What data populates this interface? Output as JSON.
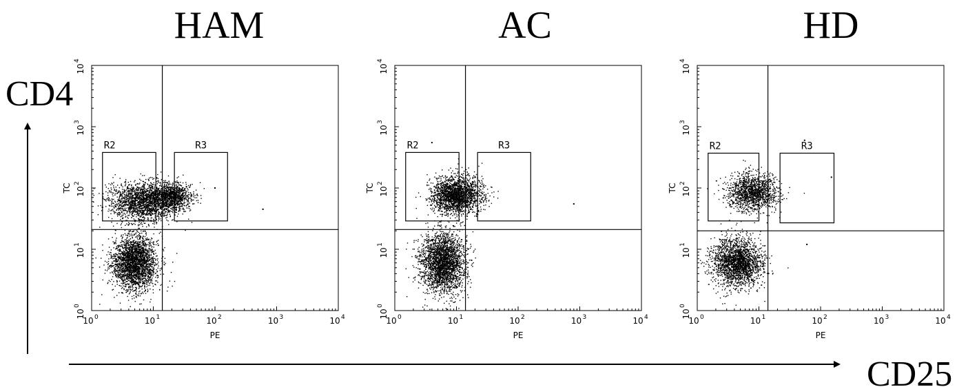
{
  "figure": {
    "y_axis_label": "CD4",
    "x_axis_label": "CD25"
  },
  "chart_data": [
    {
      "type": "scatter",
      "title": "HAM",
      "xlabel": "PE",
      "ylabel": "TC",
      "x_scale": "log",
      "y_scale": "log",
      "xlim": [
        1,
        10000
      ],
      "ylim": [
        1,
        10000
      ],
      "x_ticks": [
        {
          "base": "10",
          "exp": "0"
        },
        {
          "base": "10",
          "exp": "1"
        },
        {
          "base": "10",
          "exp": "2"
        },
        {
          "base": "10",
          "exp": "3"
        },
        {
          "base": "10",
          "exp": "4"
        }
      ],
      "y_ticks": [
        {
          "base": "10",
          "exp": "0"
        },
        {
          "base": "10",
          "exp": "1"
        },
        {
          "base": "10",
          "exp": "2"
        },
        {
          "base": "10",
          "exp": "3"
        },
        {
          "base": "10",
          "exp": "4"
        }
      ],
      "quadrant_split": {
        "x": 14,
        "y": 21
      },
      "gates": [
        {
          "name": "R2",
          "x": [
            1.5,
            11
          ],
          "y": [
            29,
            380
          ]
        },
        {
          "name": "R3",
          "x": [
            22,
            160
          ],
          "y": [
            29,
            380
          ]
        }
      ],
      "populations": [
        {
          "x": 5,
          "y": 6,
          "sx": 0.18,
          "sy": 0.22,
          "n": 2600
        },
        {
          "x": 7,
          "y": 60,
          "sx": 0.28,
          "sy": 0.15,
          "n": 2000
        },
        {
          "x": 20,
          "y": 75,
          "sx": 0.16,
          "sy": 0.1,
          "n": 900
        }
      ],
      "outliers": [
        {
          "x": 600,
          "y": 45
        },
        {
          "x": 100,
          "y": 100
        }
      ]
    },
    {
      "type": "scatter",
      "title": "AC",
      "xlabel": "PE",
      "ylabel": "TC",
      "x_scale": "log",
      "y_scale": "log",
      "xlim": [
        1,
        10000
      ],
      "ylim": [
        1,
        10000
      ],
      "x_ticks": [
        {
          "base": "10",
          "exp": "0"
        },
        {
          "base": "10",
          "exp": "1"
        },
        {
          "base": "10",
          "exp": "2"
        },
        {
          "base": "10",
          "exp": "3"
        },
        {
          "base": "10",
          "exp": "4"
        }
      ],
      "y_ticks": [
        {
          "base": "10",
          "exp": "0"
        },
        {
          "base": "10",
          "exp": "1"
        },
        {
          "base": "10",
          "exp": "2"
        },
        {
          "base": "10",
          "exp": "3"
        },
        {
          "base": "10",
          "exp": "4"
        }
      ],
      "quadrant_split": {
        "x": 14,
        "y": 21
      },
      "gates": [
        {
          "name": "R2",
          "x": [
            1.5,
            11
          ],
          "y": [
            29,
            380
          ]
        },
        {
          "name": "R3",
          "x": [
            22,
            160
          ],
          "y": [
            29,
            380
          ]
        }
      ],
      "populations": [
        {
          "x": 6,
          "y": 6,
          "sx": 0.18,
          "sy": 0.24,
          "n": 2600
        },
        {
          "x": 10,
          "y": 75,
          "sx": 0.2,
          "sy": 0.15,
          "n": 2100
        }
      ],
      "outliers": [
        {
          "x": 800,
          "y": 55
        },
        {
          "x": 4,
          "y": 550
        }
      ]
    },
    {
      "type": "scatter",
      "title": "HD",
      "xlabel": "PE",
      "ylabel": "TC",
      "x_scale": "log",
      "y_scale": "log",
      "xlim": [
        1,
        10000
      ],
      "ylim": [
        1,
        10000
      ],
      "x_ticks": [
        {
          "base": "10",
          "exp": "0"
        },
        {
          "base": "10",
          "exp": "1"
        },
        {
          "base": "10",
          "exp": "2"
        },
        {
          "base": "10",
          "exp": "3"
        },
        {
          "base": "10",
          "exp": "4"
        }
      ],
      "y_ticks": [
        {
          "base": "10",
          "exp": "0"
        },
        {
          "base": "10",
          "exp": "1"
        },
        {
          "base": "10",
          "exp": "2"
        },
        {
          "base": "10",
          "exp": "3"
        },
        {
          "base": "10",
          "exp": "4"
        }
      ],
      "quadrant_split": {
        "x": 14,
        "y": 20
      },
      "gates": [
        {
          "name": "R2",
          "x": [
            1.5,
            10
          ],
          "y": [
            29,
            370
          ]
        },
        {
          "name": "R3",
          "x": [
            22,
            165
          ],
          "y": [
            27,
            370
          ]
        }
      ],
      "populations": [
        {
          "x": 4.5,
          "y": 6,
          "sx": 0.2,
          "sy": 0.2,
          "n": 2200
        },
        {
          "x": 8,
          "y": 85,
          "sx": 0.2,
          "sy": 0.15,
          "n": 1400
        }
      ],
      "outliers": [
        {
          "x": 150,
          "y": 150
        },
        {
          "x": 60,
          "y": 12
        },
        {
          "x": 55,
          "y": 600
        }
      ]
    }
  ]
}
